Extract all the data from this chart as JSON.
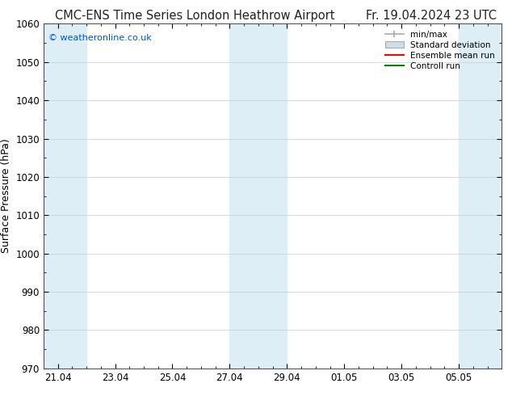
{
  "title": "CMC-ENS Time Series London Heathrow Airport",
  "date_label": "Fr. 19.04.2024 23 UTC",
  "ylabel": "Surface Pressure (hPa)",
  "ylim": [
    970,
    1060
  ],
  "yticks": [
    970,
    980,
    990,
    1000,
    1010,
    1020,
    1030,
    1040,
    1050,
    1060
  ],
  "background_color": "#ffffff",
  "plot_bg_color": "#ffffff",
  "shade_color": "#ddeef7",
  "watermark": "© weatheronline.co.uk",
  "legend_items": [
    {
      "label": "min/max",
      "color": "#aaaaaa",
      "type": "errorbar"
    },
    {
      "label": "Standard deviation",
      "color": "#cccccc",
      "type": "band"
    },
    {
      "label": "Ensemble mean run",
      "color": "#ff0000",
      "type": "line"
    },
    {
      "label": "Controll run",
      "color": "#008000",
      "type": "line"
    }
  ],
  "x_tick_labels": [
    "21.04",
    "23.04",
    "25.04",
    "27.04",
    "29.04",
    "01.05",
    "03.05",
    "05.05"
  ],
  "x_tick_positions": [
    0,
    2,
    4,
    6,
    8,
    10,
    12,
    14
  ],
  "xlim": [
    -0.5,
    15.5
  ],
  "shaded_bands": [
    {
      "x_start": -0.5,
      "x_end": 1.0
    },
    {
      "x_start": 6.0,
      "x_end": 8.0
    },
    {
      "x_start": 14.0,
      "x_end": 15.5
    }
  ],
  "title_fontsize": 10.5,
  "label_fontsize": 9,
  "tick_fontsize": 8.5
}
